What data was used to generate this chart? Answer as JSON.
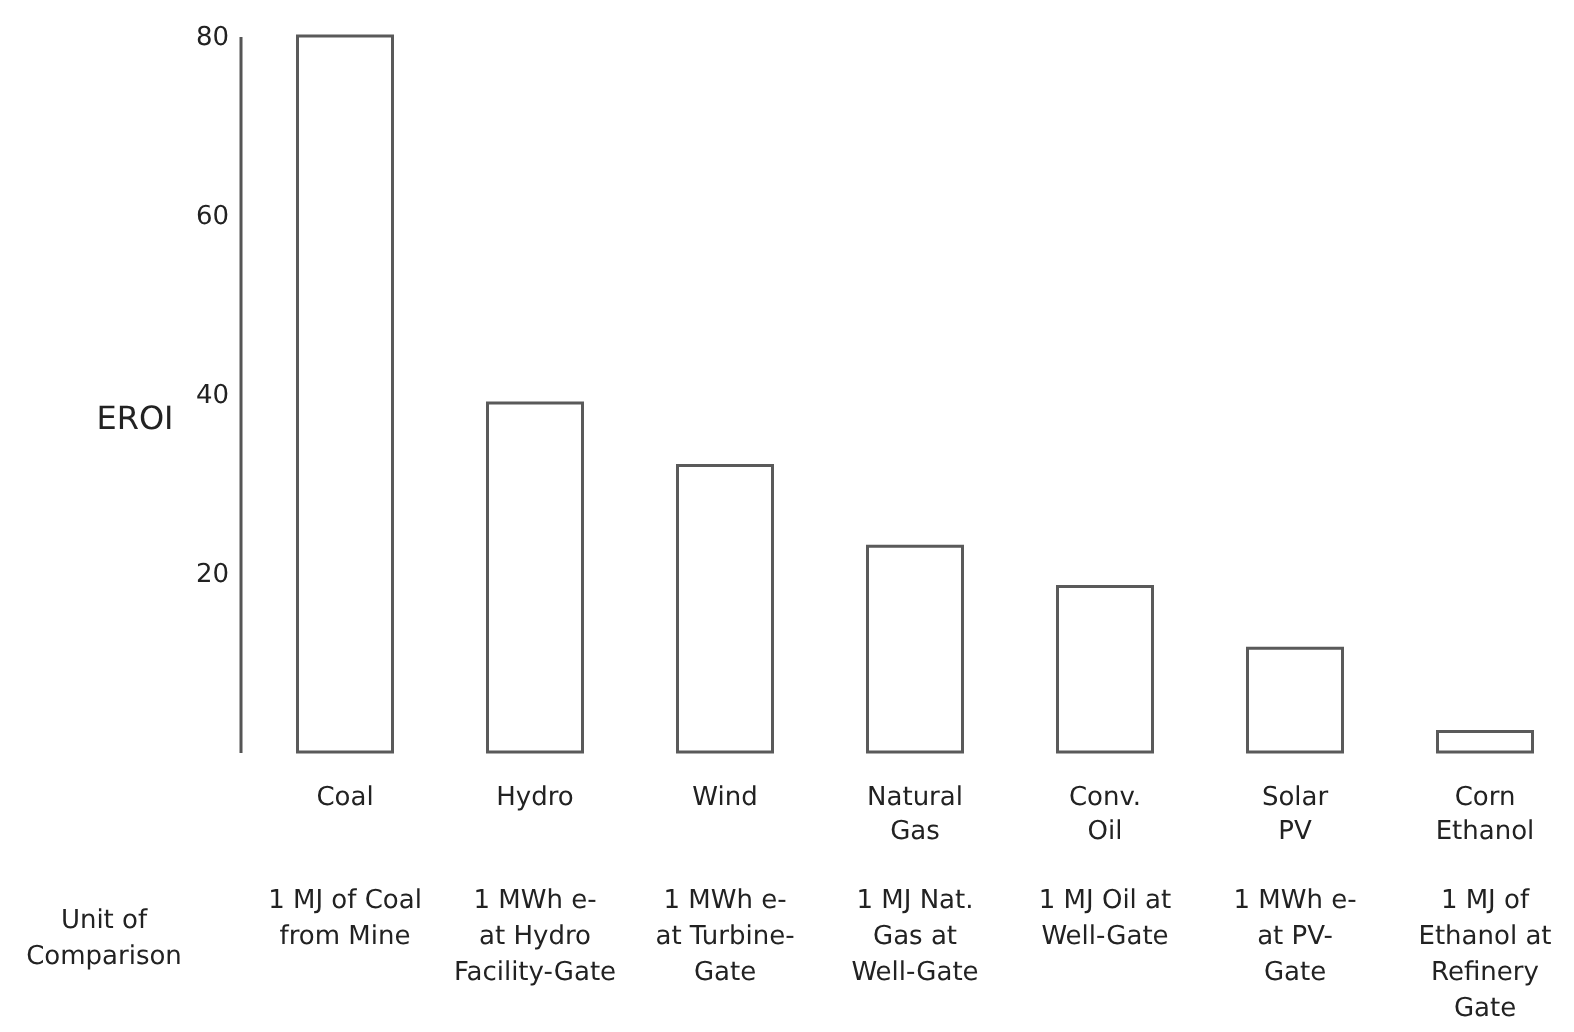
{
  "chart_data": {
    "type": "bar",
    "ylabel": "EROI",
    "categories": [
      "Coal",
      "Hydro",
      "Wind",
      "Natural Gas",
      "Conv. Oil",
      "Solar PV",
      "Corn Ethanol"
    ],
    "values": [
      80,
      39,
      32,
      23,
      18.5,
      11.6,
      2.3
    ],
    "color": "#5a5a5a",
    "ylim": [
      0,
      80
    ],
    "yticks": [
      20,
      40,
      60,
      80
    ],
    "grid": false,
    "annotations": [
      "Unit of\nComparison",
      "1 MJ of Coal\nfrom Mine",
      "1 MWh e-\nat Hydro\nFacility-Gate",
      "1 MWh e-\nat Turbine-\nGate",
      "1 MJ Nat.\nGas at\nWell-Gate",
      "1 MJ Oil at\nWell-Gate",
      "1 MWh e-\nat PV-\nGate",
      "1 MJ of\nEthanol at\nRefinery\nGate"
    ]
  }
}
